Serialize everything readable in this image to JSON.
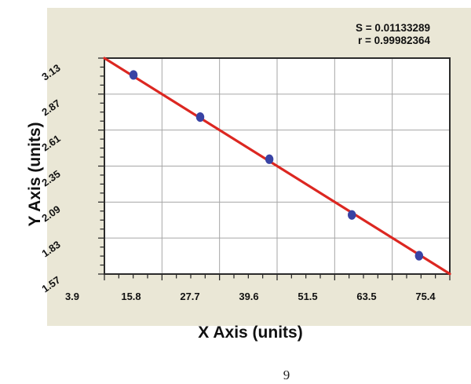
{
  "page": {
    "number": "9"
  },
  "colors": {
    "page_bg": "#ffffff",
    "panel_cream": "#EAE7D6",
    "fit_line_red": "#DC2721",
    "point_blue": "#3943A4",
    "gridline_gray": "#A6A6A6",
    "plot_border": "#2B2B2B",
    "text": "#111111"
  },
  "chart_data": {
    "type": "scatter",
    "title": "",
    "xlabel": "X Axis (units)",
    "ylabel": "Y Axis (units)",
    "s_label": "S = 0.01133289",
    "r_label": "r = 0.99982364",
    "grid": true,
    "legend": false,
    "x_tick_labels": [
      "3.9",
      "15.8",
      "27.7",
      "39.6",
      "51.5",
      "63.5",
      "75.4"
    ],
    "y_tick_labels": [
      "3.13",
      "2.87",
      "2.61",
      "2.35",
      "2.09",
      "1.83",
      "1.57"
    ],
    "xlim": [
      3.9,
      75.4
    ],
    "ylim": [
      1.57,
      3.13
    ],
    "minor_ticks_per_division": 4,
    "points": [
      [
        16.3,
        3.11
      ],
      [
        29.8,
        2.8
      ],
      [
        43.8,
        2.49
      ],
      [
        60.5,
        2.08
      ],
      [
        74.1,
        1.78
      ]
    ],
    "fit_line": {
      "type": "linear",
      "slope": -0.0227,
      "intercept": 3.47
    }
  }
}
